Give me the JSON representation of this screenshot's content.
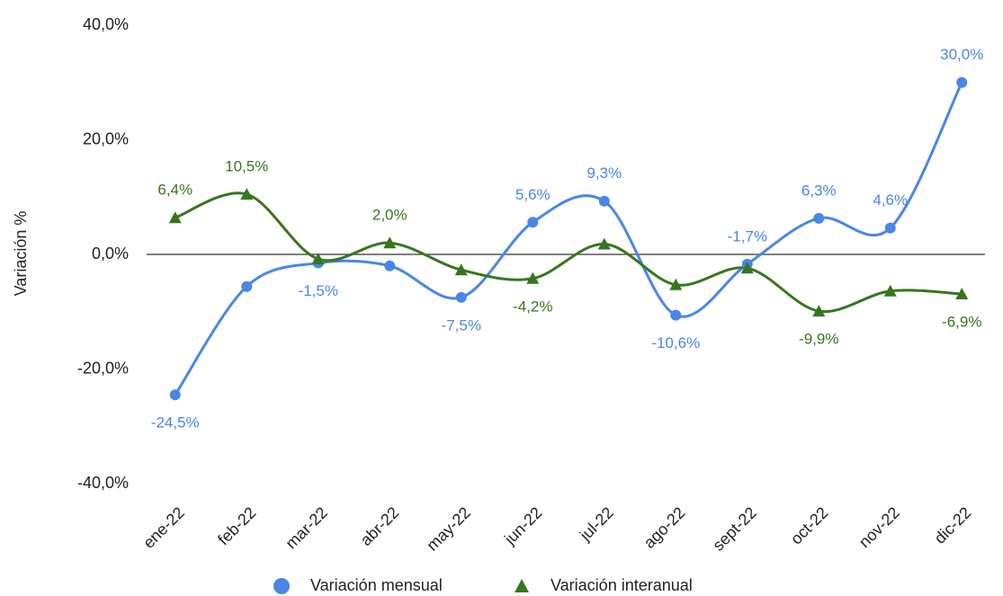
{
  "chart_data": {
    "type": "line",
    "y_label": "Variación %",
    "categories": [
      "ene-22",
      "feb-22",
      "mar-22",
      "abr-22",
      "may-22",
      "jun-22",
      "jul-22",
      "ago-22",
      "sept-22",
      "oct-22",
      "nov-22",
      "dic-22"
    ],
    "series": [
      {
        "name": "Variación mensual",
        "color": "#4a86e8",
        "marker": "circle",
        "values": [
          -24.5,
          -5.6,
          -1.5,
          -2.0,
          -7.5,
          5.6,
          9.3,
          -10.6,
          -1.7,
          6.3,
          4.6,
          30.0
        ],
        "value_labels": [
          "-24,5%",
          null,
          "-1,5%",
          null,
          "-7,5%",
          "5,6%",
          "9,3%",
          "-10,6%",
          "-1,7%",
          "6,3%",
          "4,6%",
          "30,0%"
        ]
      },
      {
        "name": "Variación interanual",
        "color": "#38761d",
        "marker": "triangle",
        "values": [
          6.4,
          10.5,
          -0.8,
          2.0,
          -2.7,
          -4.2,
          1.8,
          -5.3,
          -2.4,
          -9.9,
          -6.4,
          -6.9
        ],
        "value_labels": [
          "6,4%",
          "10,5%",
          null,
          "2,0%",
          null,
          "-4,2%",
          null,
          null,
          null,
          "-9,9%",
          null,
          "-6,9%"
        ]
      }
    ],
    "ylim": [
      -40,
      40
    ],
    "yticks": [
      {
        "value": -40,
        "label": "-40,0%"
      },
      {
        "value": -20,
        "label": "-20,0%"
      },
      {
        "value": 0,
        "label": "0,0%"
      },
      {
        "value": 20,
        "label": "20,0%"
      },
      {
        "value": 40,
        "label": "40,0%"
      }
    ],
    "legend": "bottom"
  }
}
